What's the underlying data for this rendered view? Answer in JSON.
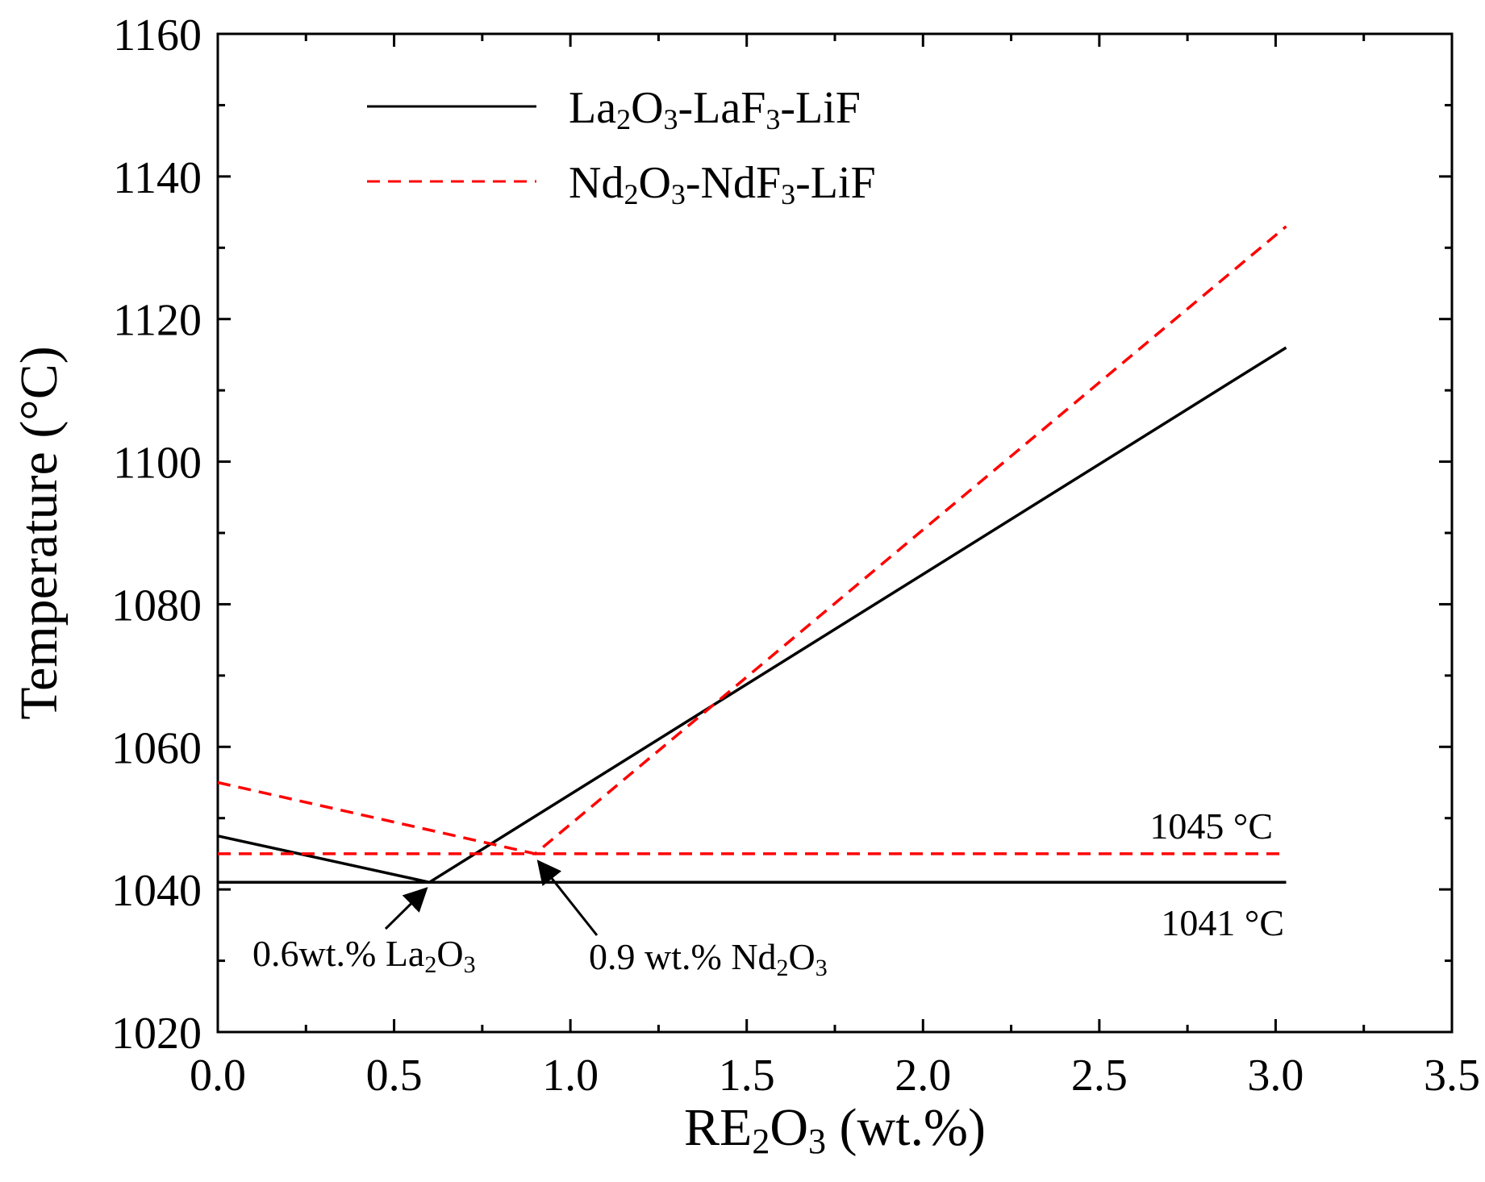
{
  "chart_data": {
    "type": "line",
    "xlabel": "RE2O3 (wt.%)",
    "xlabel_parts": {
      "a": "RE",
      "sub1": "2",
      "b": "O",
      "sub2": "3",
      "c": " (wt.%)"
    },
    "ylabel": "Temperature (°C)",
    "xlim": [
      0.0,
      3.5
    ],
    "ylim": [
      1020,
      1160
    ],
    "x_ticks": [
      0.0,
      0.5,
      1.0,
      1.5,
      2.0,
      2.5,
      3.0,
      3.5
    ],
    "x_tick_labels": [
      "0.0",
      "0.5",
      "1.0",
      "1.5",
      "2.0",
      "2.5",
      "3.0",
      "3.5"
    ],
    "y_ticks": [
      1020,
      1040,
      1060,
      1080,
      1100,
      1120,
      1140,
      1160
    ],
    "y_tick_labels": [
      "1020",
      "1040",
      "1060",
      "1080",
      "1100",
      "1120",
      "1140",
      "1160"
    ],
    "legend_position": "top-left",
    "series": [
      {
        "name": "La2O3-LaF3-LiF",
        "label_parts": {
          "a": "La",
          "sub1": "2",
          "b": "O",
          "sub2": "3",
          "c": "-LaF",
          "sub3": "3",
          "d": "-LiF"
        },
        "color": "#000000",
        "style": "solid",
        "liquidus": [
          [
            0.0,
            1047.5
          ],
          [
            0.6,
            1041.0
          ],
          [
            3.03,
            1116.0
          ]
        ],
        "eutectic": [
          [
            0.0,
            1041.0
          ],
          [
            3.03,
            1041.0
          ]
        ]
      },
      {
        "name": "Nd2O3-NdF3-LiF",
        "label_parts": {
          "a": "Nd",
          "sub1": "2",
          "b": "O",
          "sub2": "3",
          "c": "-NdF",
          "sub3": "3",
          "d": "-LiF"
        },
        "color": "#ff0000",
        "style": "dashed",
        "liquidus": [
          [
            0.0,
            1055.0
          ],
          [
            0.9,
            1045.0
          ],
          [
            3.03,
            1133.0
          ]
        ],
        "eutectic": [
          [
            0.0,
            1045.0
          ],
          [
            3.03,
            1045.0
          ]
        ]
      }
    ],
    "annotations": [
      {
        "text": "1045 °C"
      },
      {
        "text": "1041 °C"
      },
      {
        "text": "0.6wt.% La2O3",
        "parts": {
          "a": "0.6wt.% La",
          "sub1": "2",
          "b": "O",
          "sub2": "3"
        },
        "points_to": [
          0.6,
          1041.0
        ]
      },
      {
        "text": "0.9 wt.% Nd2O3",
        "parts": {
          "a": "0.9 wt.% Nd",
          "sub1": "2",
          "b": "O",
          "sub2": "3"
        },
        "points_to": [
          0.9,
          1045.0
        ]
      }
    ]
  }
}
